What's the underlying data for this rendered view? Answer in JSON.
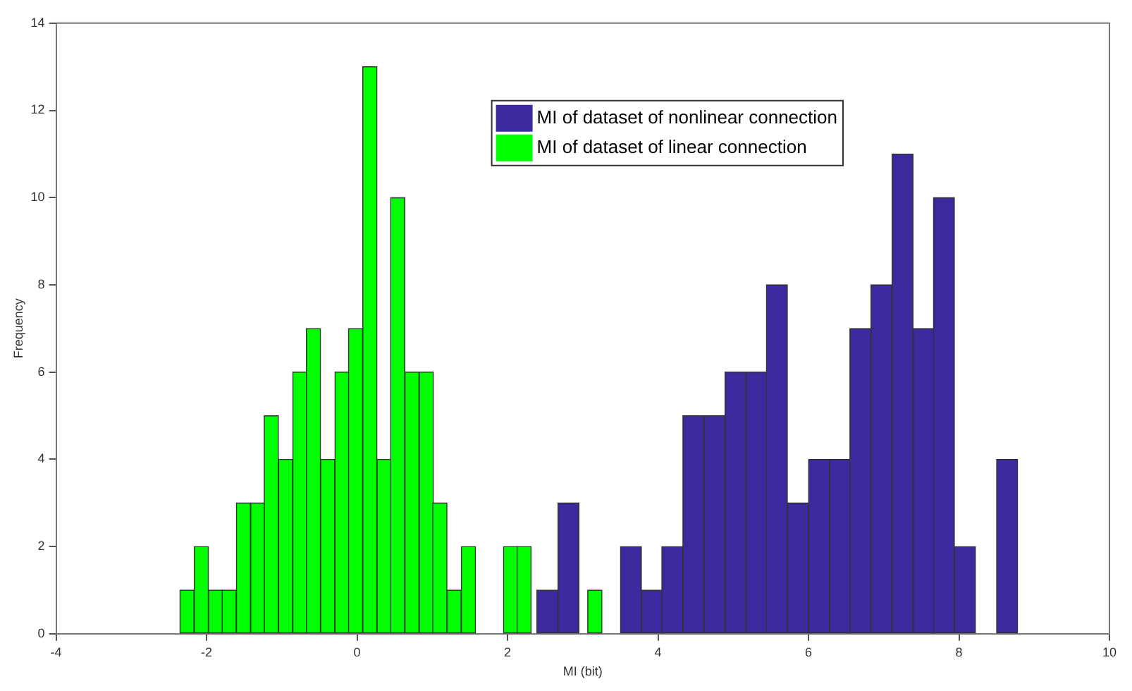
{
  "chart_data": {
    "type": "bar",
    "xlabel": "MI (bit)",
    "ylabel": "Frequency",
    "series": [
      {
        "name": "MI of dataset of nonlinear connection",
        "color": "#3a2a9e",
        "x": [
          2.53,
          2.81,
          3.08,
          3.36,
          3.64,
          3.92,
          4.19,
          4.47,
          4.75,
          5.03,
          5.31,
          5.58,
          5.86,
          6.14,
          6.42,
          6.69,
          6.97,
          7.25,
          7.53,
          7.8,
          8.08,
          8.36,
          8.64
        ],
        "values": [
          1,
          3,
          0,
          0,
          2,
          1,
          2,
          5,
          5,
          6,
          6,
          8,
          3,
          4,
          4,
          7,
          8,
          11,
          7,
          10,
          2,
          0,
          4
        ]
      },
      {
        "name": "MI of dataset of linear connection",
        "color": "#00ff00",
        "x": [
          -2.26,
          -2.07,
          -1.88,
          -1.7,
          -1.51,
          -1.32,
          -1.14,
          -0.95,
          -0.76,
          -0.58,
          -0.39,
          -0.2,
          -0.02,
          0.17,
          0.36,
          0.54,
          0.73,
          0.92,
          1.1,
          1.29,
          1.48,
          1.66,
          1.85,
          2.04,
          2.22,
          2.41,
          2.6,
          2.78,
          2.97,
          3.16
        ],
        "values": [
          1,
          2,
          1,
          1,
          3,
          3,
          5,
          4,
          6,
          7,
          4,
          6,
          7,
          13,
          4,
          10,
          6,
          6,
          3,
          1,
          2,
          0,
          0,
          2,
          2,
          0,
          0,
          0,
          0,
          1
        ]
      }
    ],
    "xlim": [
      -4,
      10
    ],
    "xticks": [
      -4,
      -2,
      0,
      2,
      4,
      6,
      8,
      10
    ],
    "ylim": [
      0,
      14
    ],
    "yticks": [
      0,
      2,
      4,
      6,
      8,
      10,
      12,
      14
    ],
    "grid": false,
    "legend": "top"
  }
}
